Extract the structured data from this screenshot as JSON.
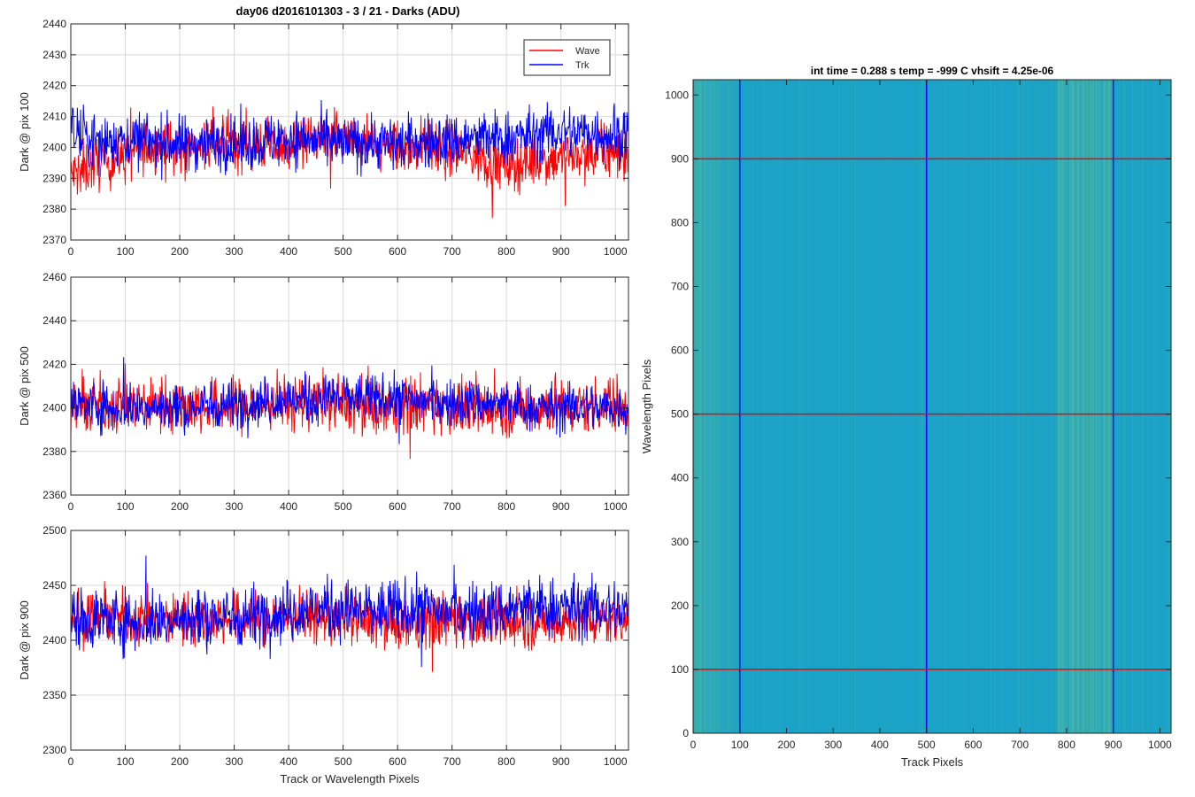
{
  "figure_title": "day06 d2016101303 - 3 / 21 - Darks (ADU)",
  "colors": {
    "wave": "#ff0000",
    "trk": "#0000ff",
    "grid": "#d9d9d9",
    "image_base": "#1aa3c6",
    "image_stripe": "#9ccf70"
  },
  "chart_data": [
    {
      "type": "line",
      "ylabel": "Dark @ pix 100",
      "xlabel": "",
      "xlim": [
        0,
        1024
      ],
      "ylim": [
        2370,
        2440
      ],
      "xticks": [
        0,
        100,
        200,
        300,
        400,
        500,
        600,
        700,
        800,
        900,
        1000
      ],
      "yticks": [
        2370,
        2380,
        2390,
        2400,
        2410,
        2420,
        2430,
        2440
      ],
      "grid": true,
      "legend": "top-right",
      "series": [
        {
          "name": "Wave",
          "color": "#ff0000",
          "x": [
            0,
            50,
            100,
            150,
            200,
            250,
            300,
            350,
            400,
            450,
            500,
            550,
            600,
            650,
            700,
            750,
            800,
            850,
            900,
            950,
            1000,
            1024
          ],
          "y": [
            2391,
            2395,
            2397,
            2401,
            2399,
            2400,
            2402,
            2401,
            2400,
            2403,
            2402,
            2401,
            2400,
            2401,
            2399,
            2397,
            2394,
            2396,
            2397,
            2398,
            2399,
            2398
          ]
        },
        {
          "name": "Trk",
          "color": "#0000ff",
          "x": [
            0,
            50,
            100,
            150,
            200,
            250,
            300,
            350,
            400,
            450,
            500,
            550,
            600,
            650,
            700,
            750,
            800,
            850,
            900,
            950,
            1000,
            1024
          ],
          "y": [
            2405,
            2402,
            2403,
            2402,
            2401,
            2402,
            2401,
            2402,
            2403,
            2402,
            2401,
            2402,
            2401,
            2402,
            2402,
            2403,
            2403,
            2404,
            2405,
            2405,
            2404,
            2404
          ]
        }
      ]
    },
    {
      "type": "line",
      "ylabel": "Dark @ pix 500",
      "xlabel": "",
      "xlim": [
        0,
        1024
      ],
      "ylim": [
        2360,
        2460
      ],
      "xticks": [
        0,
        100,
        200,
        300,
        400,
        500,
        600,
        700,
        800,
        900,
        1000
      ],
      "yticks": [
        2360,
        2380,
        2400,
        2420,
        2440,
        2460
      ],
      "grid": true,
      "series": [
        {
          "name": "Wave",
          "color": "#ff0000",
          "x": [
            0,
            50,
            100,
            150,
            200,
            250,
            300,
            350,
            400,
            450,
            500,
            550,
            600,
            650,
            700,
            750,
            800,
            850,
            900,
            950,
            1000,
            1024
          ],
          "y": [
            2400,
            2401,
            2402,
            2401,
            2402,
            2400,
            2401,
            2402,
            2402,
            2403,
            2402,
            2401,
            2402,
            2402,
            2401,
            2400,
            2400,
            2400,
            2401,
            2401,
            2402,
            2402
          ]
        },
        {
          "name": "Trk",
          "color": "#0000ff",
          "x": [
            0,
            50,
            100,
            150,
            200,
            250,
            300,
            350,
            400,
            450,
            500,
            550,
            600,
            650,
            700,
            750,
            800,
            850,
            900,
            950,
            1000,
            1024
          ],
          "y": [
            2402,
            2401,
            2400,
            2400,
            2400,
            2401,
            2402,
            2403,
            2404,
            2404,
            2405,
            2404,
            2404,
            2403,
            2402,
            2402,
            2401,
            2400,
            2400,
            2400,
            2400,
            2400
          ]
        }
      ]
    },
    {
      "type": "line",
      "ylabel": "Dark @ pix 900",
      "xlabel": "Track or Wavelength Pixels",
      "xlim": [
        0,
        1024
      ],
      "ylim": [
        2300,
        2500
      ],
      "xticks": [
        0,
        100,
        200,
        300,
        400,
        500,
        600,
        700,
        800,
        900,
        1000
      ],
      "yticks": [
        2300,
        2350,
        2400,
        2450,
        2500
      ],
      "grid": true,
      "series": [
        {
          "name": "Wave",
          "color": "#ff0000",
          "x": [
            0,
            50,
            100,
            150,
            200,
            250,
            300,
            350,
            400,
            450,
            500,
            550,
            600,
            650,
            700,
            750,
            800,
            850,
            900,
            950,
            1000,
            1024
          ],
          "y": [
            2420,
            2422,
            2420,
            2418,
            2419,
            2420,
            2419,
            2420,
            2421,
            2421,
            2420,
            2418,
            2417,
            2418,
            2419,
            2418,
            2416,
            2416,
            2418,
            2419,
            2420,
            2420
          ]
        },
        {
          "name": "Trk",
          "color": "#0000ff",
          "x": [
            0,
            50,
            100,
            150,
            200,
            250,
            300,
            350,
            400,
            450,
            500,
            550,
            600,
            650,
            700,
            750,
            800,
            850,
            900,
            950,
            1000,
            1024
          ],
          "y": [
            2418,
            2420,
            2418,
            2418,
            2419,
            2420,
            2420,
            2424,
            2426,
            2428,
            2428,
            2426,
            2427,
            2428,
            2426,
            2426,
            2428,
            2430,
            2430,
            2430,
            2428,
            2426
          ]
        }
      ]
    },
    {
      "type": "heatmap",
      "title": "int time = 0.288 s   temp = -999 C   vhsift = 4.25e-06",
      "xlabel": "Track Pixels",
      "ylabel": "Wavelength Pixels",
      "xlim": [
        0,
        1024
      ],
      "ylim": [
        0,
        1024
      ],
      "xticks": [
        0,
        100,
        200,
        300,
        400,
        500,
        600,
        700,
        800,
        900,
        1000
      ],
      "yticks": [
        0,
        100,
        200,
        300,
        400,
        500,
        600,
        700,
        800,
        900,
        1000
      ],
      "bright_column_bands": [
        [
          0,
          100
        ],
        [
          780,
          900
        ]
      ],
      "vertical_markers": {
        "color": "#0000ff",
        "x": [
          100,
          500,
          900
        ]
      },
      "horizontal_markers": {
        "color": "#ff0000",
        "y": [
          100,
          500,
          900
        ]
      }
    }
  ]
}
